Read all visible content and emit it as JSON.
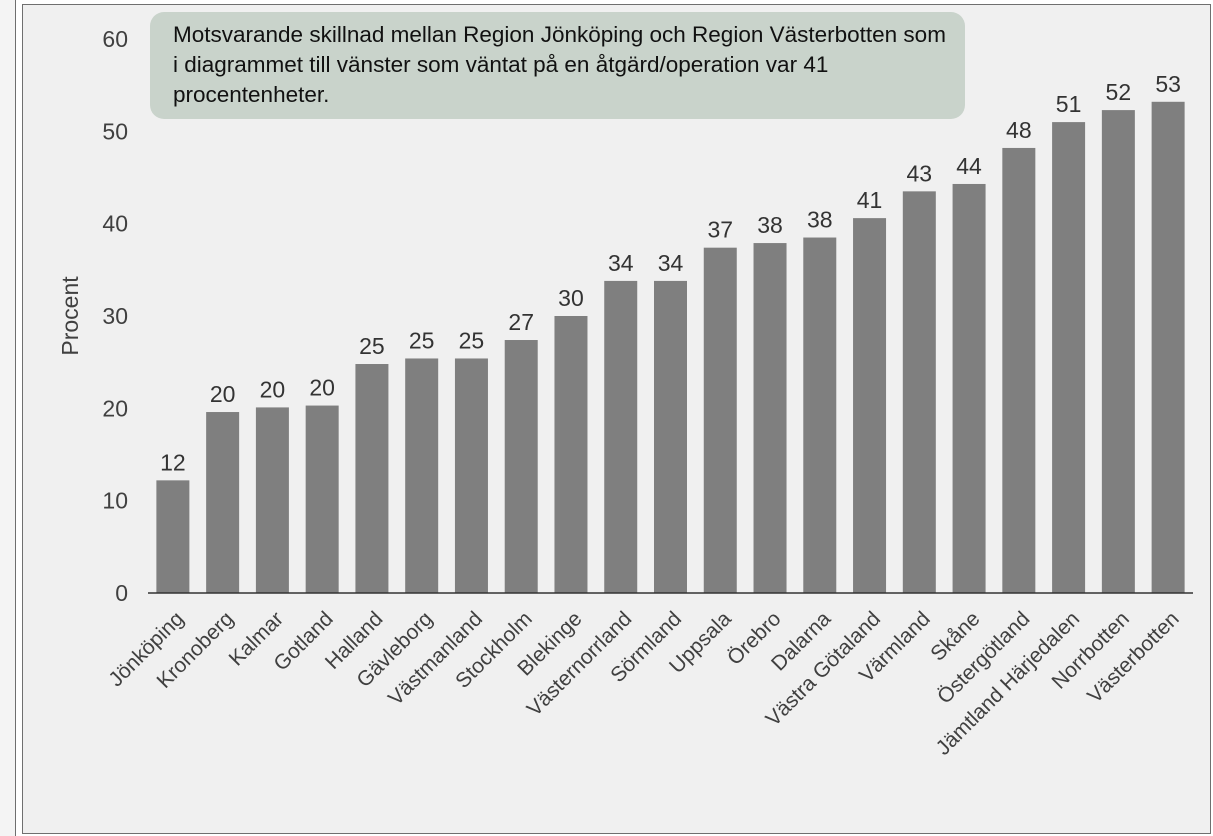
{
  "annotation": "Motsvarande skillnad mellan Region Jönköping och Region Västerbotten som i diagrammet till vänster som väntat på en åtgärd/operation var 41 procentenheter.",
  "colors": {
    "bar": "#7f7f7f",
    "background": "#f0f0f0",
    "callout": "#c9d3cb",
    "axis": "#333333",
    "text": "#404040"
  },
  "chart_data": {
    "type": "bar",
    "ylabel": "Procent",
    "ylim": [
      0,
      60
    ],
    "yticks": [
      0,
      10,
      20,
      30,
      40,
      50,
      60
    ],
    "grid": false,
    "categories": [
      "Jönköping",
      "Kronoberg",
      "Kalmar",
      "Gotland",
      "Halland",
      "Gävleborg",
      "Västmanland",
      "Stockholm",
      "Blekinge",
      "Västernorrland",
      "Sörmland",
      "Uppsala",
      "Örebro",
      "Dalarna",
      "Västra Götaland",
      "Värmland",
      "Skåne",
      "Östergötland",
      "Jämtland Härjedalen",
      "Norrbotten",
      "Västerbotten"
    ],
    "values": [
      12.2,
      19.6,
      20.1,
      20.3,
      24.8,
      25.4,
      25.4,
      27.4,
      30.0,
      33.8,
      33.8,
      37.4,
      37.9,
      38.5,
      40.6,
      43.5,
      44.3,
      48.2,
      51.0,
      52.3,
      53.2
    ],
    "data_labels": [
      "12",
      "20",
      "20",
      "20",
      "25",
      "25",
      "25",
      "27",
      "30",
      "34",
      "34",
      "37",
      "38",
      "38",
      "41",
      "43",
      "44",
      "48",
      "51",
      "52",
      "53"
    ]
  }
}
